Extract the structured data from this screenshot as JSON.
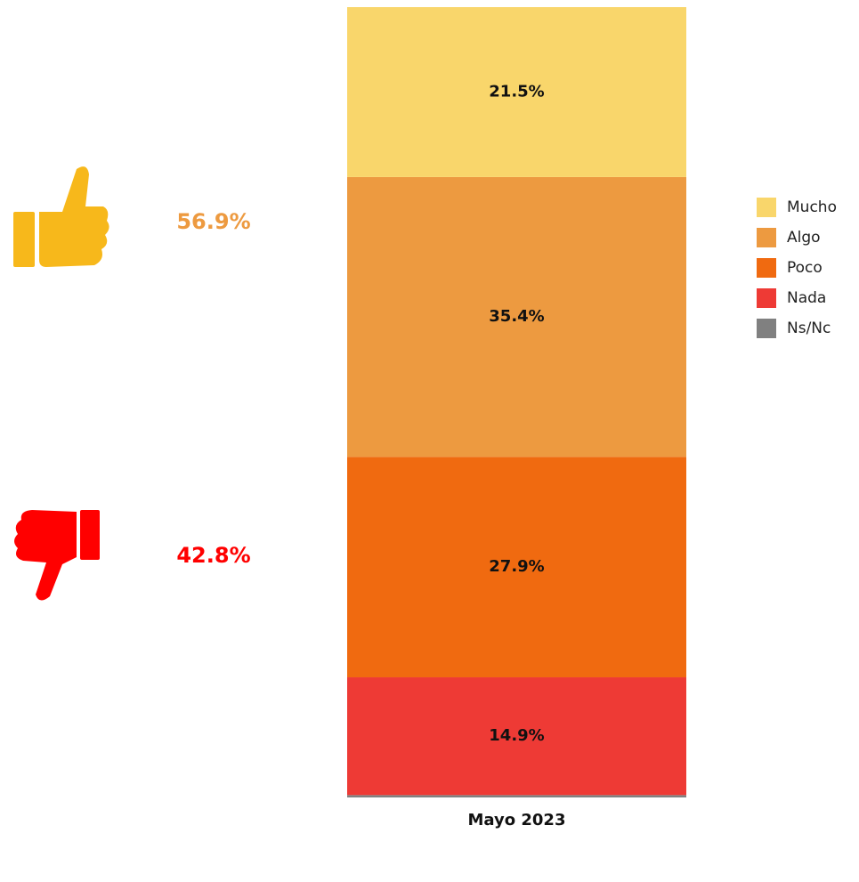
{
  "chart_data": {
    "type": "stacked_bar",
    "categories": [
      "Mayo 2023"
    ],
    "series": [
      {
        "name": "Mucho",
        "color": "#F9D66B",
        "values": [
          21.5
        ],
        "value_labels": [
          "21.5%"
        ]
      },
      {
        "name": "Algo",
        "color": "#ED9A40",
        "values": [
          35.4
        ],
        "value_labels": [
          "35.4%"
        ]
      },
      {
        "name": "Poco",
        "color": "#F06A10",
        "values": [
          27.9
        ],
        "value_labels": [
          "27.9%"
        ]
      },
      {
        "name": "Nada",
        "color": "#EE3A35",
        "values": [
          14.9
        ],
        "value_labels": [
          "14.9%"
        ]
      },
      {
        "name": "Ns/Nc",
        "color": "#808080",
        "values": [
          0.3
        ],
        "value_labels": [
          "0.3%"
        ]
      }
    ],
    "ylim": [
      0,
      100
    ],
    "annotations": [
      {
        "text": "56.9%",
        "color": "#ED9A40"
      },
      {
        "text": "42.8%",
        "color": "#FF0000"
      }
    ]
  }
}
